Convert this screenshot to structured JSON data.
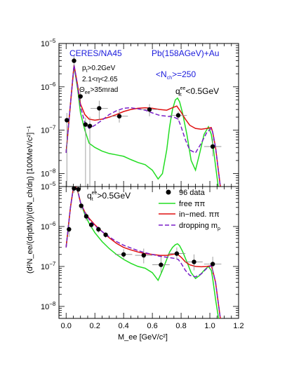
{
  "header": {
    "experiment": "CERES/NA45",
    "system": "Pb(158AGeV)+Au",
    "nch": "<N",
    "nch_sub": "ch",
    "nch_val": ">=250"
  },
  "cuts": {
    "pt": "p",
    "pt_sub": "t",
    "pt_val": ">0.2GeV",
    "eta": "2.1<η<2.65",
    "theta": "Θ",
    "theta_sub": "ee",
    "theta_val": ">35mrad"
  },
  "top_label": {
    "prefix": "q",
    "sub": "t",
    "sup": "ee",
    "suffix": "<0.5GeV"
  },
  "bottom_label": {
    "prefix": "q",
    "sub": "t",
    "sup": "ee",
    "suffix": ">0.5GeV"
  },
  "ylabel": "(d²N",
  "ylabel_text": "(d²N_ee/(dηdM))/(dN_ch/dη) [100MeV/c²]⁻¹",
  "xlabel_text": "M_ee [GeV/c²]",
  "legend": {
    "data": "96 data",
    "free": "free ππ",
    "inmed": "in−med. ππ",
    "drop": "dropping m",
    "drop_sub": "ρ"
  },
  "colors": {
    "free": "#22dd22",
    "inmed": "#e01010",
    "drop": "#7a1fc8",
    "header": "#1a1adc",
    "data": "#000000"
  },
  "chart_data": [
    {
      "type": "scatter",
      "panel": "top",
      "xlim": [
        -0.05,
        1.2
      ],
      "ylim_log10": [
        -8.3,
        -5.0
      ],
      "y_ticks": [
        "10^-5",
        "10^-6",
        "10^-7",
        "10^-8"
      ],
      "series": [
        {
          "name": "96 data",
          "x": [
            0.005,
            0.055,
            0.1,
            0.135,
            0.165,
            0.23,
            0.37,
            0.58,
            0.78,
            1.02
          ],
          "y": [
            1.7e-07,
            4e-06,
            6e-07,
            1.35e-07,
            1.25e-07,
            3.2e-07,
            2.1e-07,
            3e-07,
            2.2e-07,
            4.2e-08
          ],
          "xerr": [
            0.0,
            0.0,
            0.0,
            0.0,
            0.0,
            0.06,
            0.06,
            0.06,
            0.06,
            0.06
          ],
          "yerr_lo": [
            1.67e-07,
            1e-06,
            1.5e-07,
            1.3e-07,
            1.2e-07,
            1.5e-07,
            6e-08,
            9e-08,
            5e-08,
            1.7e-08
          ],
          "yerr_hi": [
            8e-08,
            1.2e-06,
            2e-07,
            6e-08,
            8e-08,
            1.6e-07,
            7e-08,
            1e-07,
            5e-08,
            2.2e-08
          ]
        },
        {
          "name": "free ππ",
          "x": [
            0.0,
            0.03,
            0.055,
            0.08,
            0.1,
            0.13,
            0.16,
            0.2,
            0.25,
            0.3,
            0.35,
            0.4,
            0.45,
            0.5,
            0.55,
            0.6,
            0.64,
            0.67,
            0.7,
            0.72,
            0.74,
            0.76,
            0.775,
            0.79,
            0.81,
            0.84,
            0.87,
            0.9,
            0.93,
            0.96,
            0.99,
            1.01,
            1.02,
            1.04,
            1.07,
            1.1
          ],
          "y": [
            3e-08,
            4e-07,
            3e-06,
            9e-07,
            2.5e-07,
            1e-07,
            5e-08,
            4e-08,
            3.3e-08,
            2.9e-08,
            2.7e-08,
            2.5e-08,
            2.1e-08,
            1.8e-08,
            1.6e-08,
            1.2e-08,
            7.5e-09,
            1e-08,
            3.5e-08,
            1.2e-07,
            3e-07,
            5e-07,
            5.5e-07,
            4.5e-07,
            2.5e-07,
            8e-08,
            2e-08,
            1.2e-08,
            3e-08,
            8e-08,
            1.2e-07,
            8e-08,
            5e-08,
            1.5e-08,
            2.5e-09,
            5e-10
          ]
        },
        {
          "name": "in−med. ππ",
          "x": [
            0.0,
            0.03,
            0.055,
            0.08,
            0.1,
            0.13,
            0.16,
            0.2,
            0.25,
            0.3,
            0.35,
            0.4,
            0.45,
            0.5,
            0.55,
            0.6,
            0.65,
            0.7,
            0.74,
            0.77,
            0.8,
            0.83,
            0.86,
            0.9,
            0.94,
            0.98,
            1.01,
            1.02,
            1.04,
            1.07,
            1.1
          ],
          "y": [
            3e-08,
            4e-07,
            3.2e-06,
            1.1e-06,
            4e-07,
            2.3e-07,
            1.8e-07,
            1.7e-07,
            1.8e-07,
            2e-07,
            2.3e-07,
            2.7e-07,
            3e-07,
            3.2e-07,
            3.3e-07,
            3.2e-07,
            3e-07,
            2.9e-07,
            3.3e-07,
            3.6e-07,
            2.6e-07,
            1.8e-07,
            1.3e-07,
            1.1e-07,
            1.05e-07,
            1.1e-07,
            1.15e-07,
            9e-08,
            4e-08,
            6e-09,
            1e-09
          ]
        },
        {
          "name": "dropping mρ",
          "x": [
            0.0,
            0.03,
            0.055,
            0.08,
            0.1,
            0.13,
            0.16,
            0.2,
            0.25,
            0.3,
            0.35,
            0.4,
            0.45,
            0.5,
            0.55,
            0.6,
            0.65,
            0.7,
            0.75,
            0.78,
            0.8,
            0.83,
            0.86,
            0.9,
            0.94,
            0.98,
            1.01,
            1.02,
            1.04,
            1.07,
            1.1
          ],
          "y": [
            3e-08,
            4e-07,
            3.2e-06,
            1e-06,
            3.5e-07,
            1.5e-07,
            1.1e-07,
            1.3e-07,
            1.7e-07,
            2.3e-07,
            2.8e-07,
            3.2e-07,
            3.3e-07,
            3.1e-07,
            2.9e-07,
            2.5e-07,
            2.2e-07,
            2.1e-07,
            2e-07,
            1.8e-07,
            1.2e-07,
            6e-08,
            3.5e-08,
            3e-08,
            5e-08,
            9e-08,
            1.1e-07,
            9e-08,
            4e-08,
            6e-09,
            1e-09
          ]
        }
      ]
    },
    {
      "type": "scatter",
      "panel": "bottom",
      "xlim": [
        -0.05,
        1.2
      ],
      "ylim_log10": [
        -8.3,
        -5.0
      ],
      "y_ticks": [
        "10^-5",
        "10^-6",
        "10^-7",
        "10^-8"
      ],
      "x_ticks": [
        "0.0",
        "0.2",
        "0.4",
        "0.6",
        "0.8",
        "1.0",
        "1.2"
      ],
      "series": [
        {
          "name": "96 data",
          "x": [
            0.02,
            0.055,
            0.085,
            0.105,
            0.14,
            0.175,
            0.225,
            0.275,
            0.4,
            0.54,
            0.66,
            0.77,
            0.89,
            1.02
          ],
          "y": [
            8.5e-07,
            9e-06,
            8.5e-06,
            3.3e-06,
            1.8e-06,
            1.1e-06,
            8.5e-07,
            6.2e-07,
            2e-07,
            1.9e-07,
            1.1e-07,
            2.1e-07,
            1.3e-07,
            1.15e-07
          ],
          "xerr": [
            0.0,
            0.0,
            0.0,
            0.0,
            0.0,
            0.0,
            0.0,
            0.0,
            0.06,
            0.06,
            0.06,
            0.06,
            0.06,
            0.06
          ],
          "yerr_lo": [
            3e-07,
            2e-06,
            2e-06,
            7e-07,
            4e-07,
            2e-07,
            1.5e-07,
            1e-07,
            5e-08,
            7e-08,
            4e-08,
            6e-08,
            5e-08,
            5e-08
          ],
          "yerr_hi": [
            3e-07,
            2e-06,
            2e-06,
            7e-07,
            4e-07,
            2e-07,
            1.5e-07,
            1e-07,
            7e-08,
            9e-08,
            6e-08,
            9e-08,
            7e-08,
            6e-08
          ]
        },
        {
          "name": "free ππ",
          "x": [
            0.0,
            0.03,
            0.055,
            0.08,
            0.1,
            0.13,
            0.16,
            0.2,
            0.25,
            0.3,
            0.35,
            0.4,
            0.45,
            0.5,
            0.55,
            0.6,
            0.64,
            0.67,
            0.7,
            0.72,
            0.74,
            0.76,
            0.775,
            0.79,
            0.81,
            0.84,
            0.87,
            0.9,
            0.93,
            0.96,
            0.99,
            1.01,
            1.02,
            1.04,
            1.07,
            1.1
          ],
          "y": [
            3e-07,
            3e-06,
            1.2e-05,
            8e-06,
            4e-06,
            2e-06,
            1.2e-06,
            7e-07,
            4.2e-07,
            2.8e-07,
            2e-07,
            1.5e-07,
            1.2e-07,
            1e-07,
            9e-08,
            7e-08,
            4.5e-08,
            8e-08,
            1.5e-07,
            2.3e-07,
            3e-07,
            3.5e-07,
            3.7e-07,
            3.3e-07,
            2.4e-07,
            1.3e-07,
            7e-08,
            5e-08,
            6e-08,
            8e-08,
            1e-07,
            8e-08,
            5e-08,
            1.5e-08,
            3e-09,
            5e-10
          ]
        },
        {
          "name": "in−med. ππ",
          "x": [
            0.0,
            0.03,
            0.055,
            0.08,
            0.1,
            0.13,
            0.16,
            0.2,
            0.25,
            0.3,
            0.35,
            0.4,
            0.45,
            0.5,
            0.55,
            0.6,
            0.65,
            0.7,
            0.74,
            0.77,
            0.8,
            0.83,
            0.86,
            0.9,
            0.94,
            0.98,
            1.01,
            1.02,
            1.04,
            1.07,
            1.1
          ],
          "y": [
            3e-07,
            3e-06,
            1.2e-05,
            8e-06,
            4e-06,
            2.3e-06,
            1.6e-06,
            1.1e-06,
            7.5e-07,
            5.2e-07,
            3.8e-07,
            3e-07,
            2.6e-07,
            2.3e-07,
            2.1e-07,
            2e-07,
            1.9e-07,
            1.9e-07,
            2e-07,
            2.1e-07,
            1.7e-07,
            1.3e-07,
            1.1e-07,
            1e-07,
            9.8e-08,
            1e-07,
            1.05e-07,
            8e-08,
            4e-08,
            6e-09,
            1e-09
          ]
        },
        {
          "name": "dropping mρ",
          "x": [
            0.0,
            0.03,
            0.055,
            0.08,
            0.1,
            0.13,
            0.16,
            0.2,
            0.25,
            0.3,
            0.35,
            0.4,
            0.45,
            0.5,
            0.55,
            0.6,
            0.65,
            0.7,
            0.75,
            0.78,
            0.8,
            0.83,
            0.86,
            0.9,
            0.94,
            0.98,
            1.01,
            1.02,
            1.04,
            1.07,
            1.1
          ],
          "y": [
            3e-07,
            3e-06,
            1.2e-05,
            8e-06,
            4e-06,
            2.2e-06,
            1.5e-06,
            1.05e-06,
            7.5e-07,
            5.5e-07,
            4.2e-07,
            3.4e-07,
            2.9e-07,
            2.5e-07,
            2.2e-07,
            2e-07,
            1.8e-07,
            1.7e-07,
            1.6e-07,
            1.5e-07,
            1.2e-07,
            8e-08,
            6e-08,
            5.5e-08,
            6.5e-08,
            9e-08,
            1.05e-07,
            8e-08,
            4e-08,
            6e-09,
            1e-09
          ]
        }
      ]
    }
  ]
}
